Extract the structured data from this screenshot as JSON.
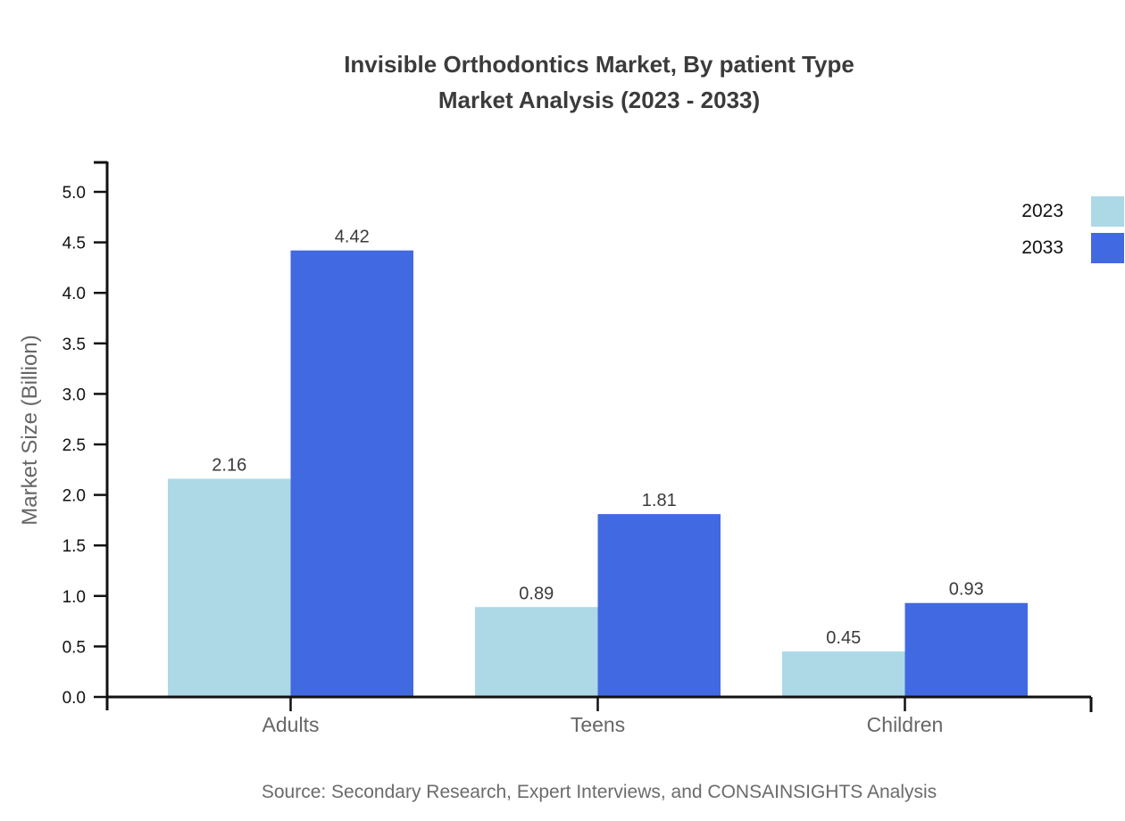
{
  "title": {
    "line1": "Invisible Orthodontics Market, By patient Type",
    "line2": "Market Analysis (2023 - 2033)"
  },
  "source": "Source: Secondary Research, Expert Interviews, and CONSAINSIGHTS Analysis",
  "chart_data": {
    "type": "bar",
    "title": "Invisible Orthodontics Market, By patient Type Market Analysis (2023 - 2033)",
    "categories": [
      "Adults",
      "Teens",
      "Children"
    ],
    "series": [
      {
        "name": "2023",
        "color": "#ADD8E6",
        "values": [
          2.16,
          0.89,
          0.45
        ]
      },
      {
        "name": "2033",
        "color": "#4169E1",
        "values": [
          4.42,
          1.81,
          0.93
        ]
      }
    ],
    "xlabel": "",
    "ylabel": "Market Size (Billion)",
    "ylim": [
      0,
      5.0
    ],
    "ytick_step": 0.5,
    "ytick_decimals": 1,
    "value_label_decimals": 2,
    "grid": false,
    "legend_position": "top-right"
  },
  "colors": {
    "axis": "#111111",
    "tick_label": "#111111",
    "category_label": "#666666",
    "value_label": "#3a3a3a",
    "title_text": "#3b3b3b",
    "source_text": "#6b6b6b",
    "legend_text": "#111111",
    "series_2023": "#ADD8E6",
    "series_2033": "#4169E1"
  }
}
